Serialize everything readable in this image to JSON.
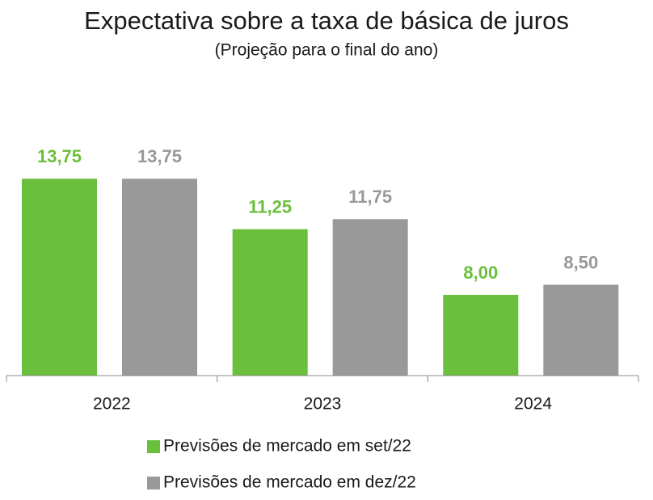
{
  "chart_data": {
    "type": "bar",
    "title": "Expectativa sobre a taxa de básica de juros",
    "subtitle": "(Projeção para o final do ano)",
    "categories": [
      "2022",
      "2023",
      "2024"
    ],
    "series": [
      {
        "name": "Previsões de mercado em set/22",
        "color": "#6abf3c",
        "values": [
          13.75,
          11.25,
          8.0
        ],
        "value_labels": [
          "13,75",
          "11,25",
          "8,00"
        ]
      },
      {
        "name": "Previsões de mercado em dez/22",
        "color": "#999999",
        "values": [
          13.75,
          11.75,
          8.5
        ],
        "value_labels": [
          "13,75",
          "11,75",
          "8,50"
        ]
      }
    ],
    "ylim": [
      4,
      14
    ]
  }
}
